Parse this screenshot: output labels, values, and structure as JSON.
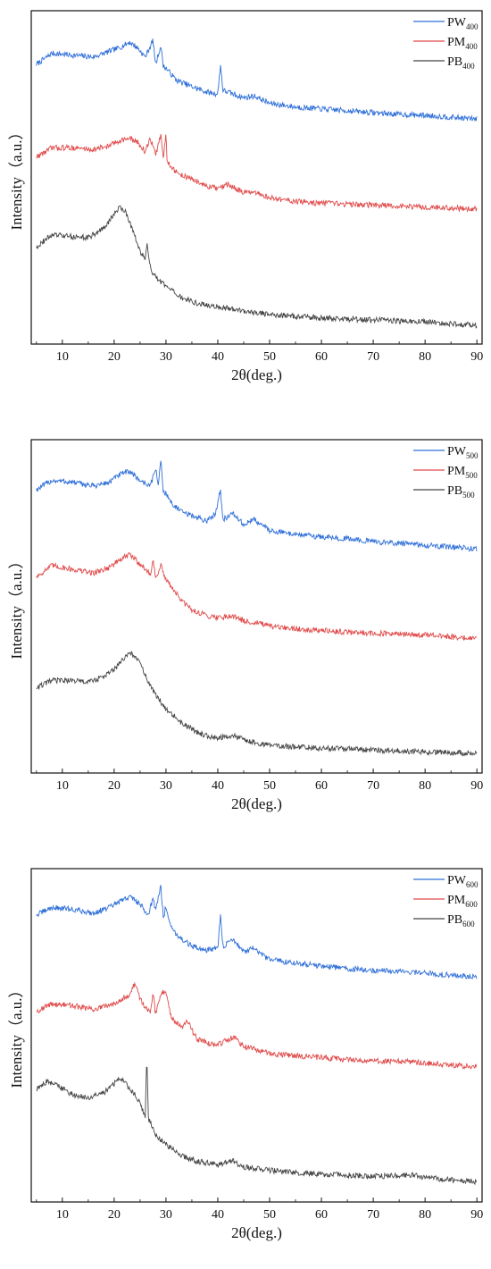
{
  "chart_data": [
    {
      "type": "line",
      "xlabel": "2θ(deg.)",
      "ylabel": "Intensity（a.u.）",
      "xlim": [
        4,
        91
      ],
      "xticks": [
        10,
        20,
        30,
        40,
        50,
        60,
        70,
        80,
        90
      ],
      "y_ticks_shown": false,
      "legend_position": "top-right",
      "series": [
        {
          "label": "PW",
          "subscript": "400",
          "color": "#2f6fd8",
          "offset": 2.2,
          "x": [
            5,
            8,
            12,
            16,
            19,
            21,
            23,
            24.5,
            26,
            27.5,
            28,
            29,
            29.5,
            30,
            32,
            35,
            38,
            40,
            40.5,
            41,
            43,
            45,
            47,
            50,
            55,
            60,
            65,
            70,
            75,
            80,
            85,
            90
          ],
          "y": [
            0.62,
            0.74,
            0.72,
            0.7,
            0.76,
            0.8,
            0.86,
            0.8,
            0.7,
            0.88,
            0.62,
            0.82,
            0.6,
            0.58,
            0.45,
            0.38,
            0.32,
            0.3,
            0.62,
            0.34,
            0.3,
            0.26,
            0.28,
            0.2,
            0.16,
            0.14,
            0.12,
            0.1,
            0.08,
            0.07,
            0.05,
            0.03
          ]
        },
        {
          "label": "PM",
          "subscript": "400",
          "color": "#e04a4a",
          "offset": 1.2,
          "x": [
            5,
            8,
            12,
            16,
            19,
            21,
            23,
            24.5,
            26,
            27,
            28,
            29,
            29.5,
            30,
            30.2,
            32,
            35,
            38,
            40,
            42,
            45,
            48,
            50,
            55,
            60,
            65,
            70,
            75,
            80,
            85,
            90
          ],
          "y": [
            0.62,
            0.72,
            0.72,
            0.7,
            0.74,
            0.8,
            0.82,
            0.78,
            0.68,
            0.82,
            0.64,
            0.86,
            0.6,
            0.88,
            0.58,
            0.45,
            0.38,
            0.3,
            0.28,
            0.32,
            0.24,
            0.22,
            0.18,
            0.14,
            0.12,
            0.11,
            0.1,
            0.09,
            0.08,
            0.07,
            0.06
          ]
        },
        {
          "label": "PB",
          "subscript": "400",
          "color": "#454545",
          "offset": 0.0,
          "x": [
            5,
            8,
            12,
            15,
            18,
            20,
            21,
            22,
            23,
            24,
            25,
            26,
            26.3,
            27,
            28,
            30,
            33,
            36,
            40,
            45,
            50,
            55,
            60,
            65,
            70,
            75,
            80,
            85,
            90
          ],
          "y": [
            0.85,
            0.98,
            0.96,
            0.95,
            1.05,
            1.2,
            1.28,
            1.25,
            1.12,
            0.96,
            0.8,
            0.72,
            0.88,
            0.62,
            0.52,
            0.42,
            0.3,
            0.24,
            0.2,
            0.16,
            0.12,
            0.1,
            0.08,
            0.07,
            0.06,
            0.05,
            0.04,
            0.02,
            0.0
          ]
        }
      ]
    },
    {
      "type": "line",
      "xlabel": "2θ(deg.)",
      "ylabel": "Intensity（a.u.）",
      "xlim": [
        4,
        91
      ],
      "xticks": [
        10,
        20,
        30,
        40,
        50,
        60,
        70,
        80,
        90
      ],
      "y_ticks_shown": false,
      "legend_position": "top-right",
      "series": [
        {
          "label": "PW",
          "subscript": "500",
          "color": "#2f6fd8",
          "offset": 2.2,
          "x": [
            5,
            8,
            12,
            16,
            19,
            21,
            23,
            25,
            27,
            28,
            28.5,
            29,
            29.5,
            30,
            31,
            33,
            36,
            38,
            39.5,
            40.5,
            41,
            43,
            45,
            47,
            48,
            50,
            55,
            60,
            65,
            70,
            75,
            80,
            85,
            90
          ],
          "y": [
            0.66,
            0.76,
            0.74,
            0.7,
            0.74,
            0.82,
            0.86,
            0.76,
            0.7,
            0.9,
            0.7,
            0.98,
            0.64,
            0.62,
            0.52,
            0.42,
            0.36,
            0.32,
            0.4,
            0.66,
            0.34,
            0.4,
            0.28,
            0.34,
            0.3,
            0.22,
            0.18,
            0.15,
            0.13,
            0.1,
            0.08,
            0.06,
            0.04,
            0.02
          ]
        },
        {
          "label": "PM",
          "subscript": "500",
          "color": "#e04a4a",
          "offset": 1.2,
          "x": [
            5,
            8,
            12,
            16,
            19,
            21,
            23,
            25,
            27,
            27.5,
            28,
            29,
            30,
            31,
            33,
            35,
            38,
            40,
            43,
            45,
            48,
            50,
            55,
            60,
            65,
            70,
            75,
            80,
            85,
            90
          ],
          "y": [
            0.72,
            0.84,
            0.8,
            0.76,
            0.82,
            0.9,
            0.96,
            0.86,
            0.74,
            0.92,
            0.7,
            0.84,
            0.68,
            0.62,
            0.46,
            0.36,
            0.3,
            0.28,
            0.3,
            0.24,
            0.22,
            0.18,
            0.16,
            0.14,
            0.12,
            0.11,
            0.1,
            0.09,
            0.07,
            0.05
          ]
        },
        {
          "label": "PB",
          "subscript": "500",
          "color": "#454545",
          "offset": 0.0,
          "x": [
            5,
            8,
            12,
            15,
            18,
            20,
            22,
            23,
            24,
            25,
            26,
            27,
            28,
            30,
            33,
            36,
            38,
            40,
            43,
            45,
            48,
            50,
            55,
            60,
            65,
            70,
            75,
            80,
            85,
            90
          ],
          "y": [
            0.72,
            0.8,
            0.8,
            0.78,
            0.84,
            0.92,
            1.04,
            1.1,
            1.06,
            0.98,
            0.86,
            0.74,
            0.64,
            0.5,
            0.34,
            0.24,
            0.2,
            0.18,
            0.2,
            0.16,
            0.12,
            0.1,
            0.08,
            0.07,
            0.06,
            0.05,
            0.04,
            0.03,
            0.02,
            0.01
          ]
        }
      ]
    },
    {
      "type": "line",
      "xlabel": "2θ(deg.)",
      "ylabel": "Intensity（a.u.）",
      "xlim": [
        4,
        91
      ],
      "xticks": [
        10,
        20,
        30,
        40,
        50,
        60,
        70,
        80,
        90
      ],
      "y_ticks_shown": false,
      "legend_position": "top-right",
      "series": [
        {
          "label": "PW",
          "subscript": "600",
          "color": "#2f6fd8",
          "offset": 2.2,
          "x": [
            5,
            8,
            12,
            16,
            19,
            21,
            23,
            25,
            26.5,
            27.5,
            28,
            29,
            29.5,
            30,
            31,
            33,
            35,
            38,
            40,
            40.5,
            41,
            43,
            45,
            47,
            48,
            50,
            55,
            60,
            65,
            70,
            75,
            80,
            85,
            90
          ],
          "y": [
            0.7,
            0.78,
            0.76,
            0.72,
            0.78,
            0.84,
            0.9,
            0.82,
            0.7,
            0.88,
            0.74,
            1.02,
            0.66,
            0.8,
            0.56,
            0.44,
            0.36,
            0.32,
            0.34,
            0.7,
            0.36,
            0.44,
            0.3,
            0.34,
            0.28,
            0.22,
            0.18,
            0.15,
            0.12,
            0.1,
            0.09,
            0.07,
            0.05,
            0.03
          ]
        },
        {
          "label": "PM",
          "subscript": "600",
          "color": "#e04a4a",
          "offset": 1.2,
          "x": [
            5,
            8,
            12,
            16,
            19,
            21,
            23,
            24,
            25,
            26,
            27,
            27.5,
            28,
            29,
            30,
            31,
            33,
            34,
            36,
            38,
            40,
            43,
            45,
            48,
            50,
            55,
            60,
            65,
            70,
            75,
            80,
            85,
            90
          ],
          "y": [
            0.66,
            0.74,
            0.72,
            0.68,
            0.72,
            0.78,
            0.84,
            0.96,
            0.8,
            0.7,
            0.66,
            0.88,
            0.62,
            0.86,
            0.88,
            0.6,
            0.48,
            0.56,
            0.36,
            0.32,
            0.3,
            0.38,
            0.28,
            0.24,
            0.2,
            0.18,
            0.16,
            0.14,
            0.12,
            0.12,
            0.1,
            0.08,
            0.06
          ]
        },
        {
          "label": "PB",
          "subscript": "600",
          "color": "#454545",
          "offset": 0.0,
          "x": [
            5,
            7,
            9,
            12,
            15,
            18,
            20,
            21,
            22,
            23,
            24,
            25,
            26,
            26.3,
            26.6,
            28,
            30,
            33,
            36,
            40,
            43,
            45,
            50,
            55,
            60,
            65,
            70,
            75,
            78,
            80,
            85,
            90
          ],
          "y": [
            1.02,
            1.1,
            1.06,
            0.96,
            0.92,
            0.98,
            1.08,
            1.14,
            1.1,
            1.02,
            0.96,
            0.86,
            0.72,
            1.4,
            0.7,
            0.52,
            0.42,
            0.3,
            0.24,
            0.2,
            0.24,
            0.18,
            0.14,
            0.12,
            0.1,
            0.09,
            0.08,
            0.08,
            0.09,
            0.06,
            0.04,
            0.02
          ]
        }
      ]
    }
  ]
}
